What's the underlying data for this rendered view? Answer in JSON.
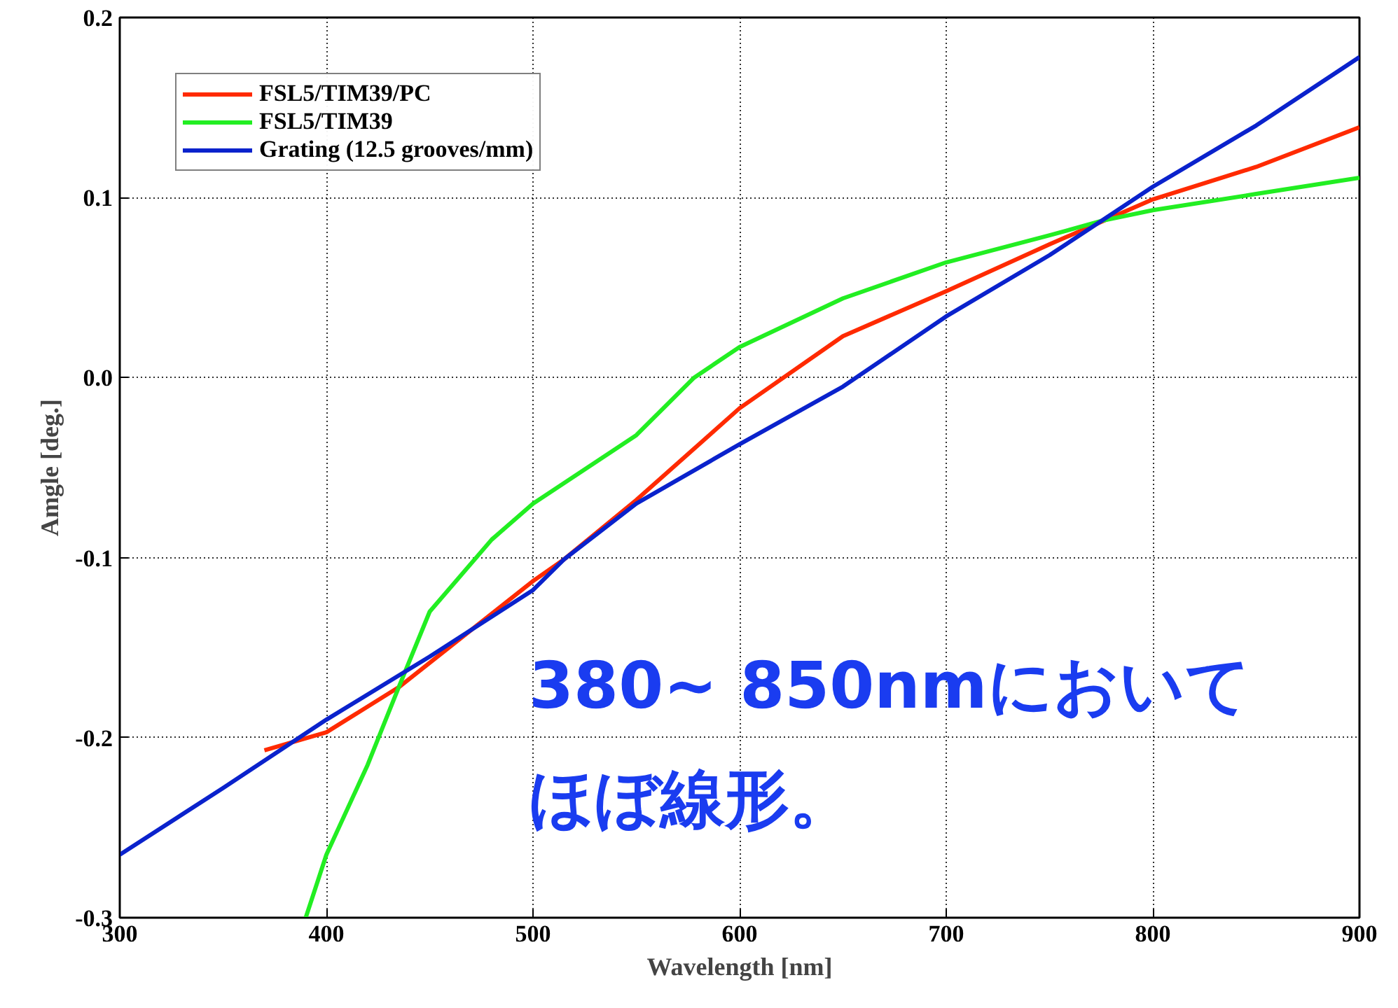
{
  "chart_data": {
    "type": "line",
    "xlabel": "Wavelength [nm]",
    "ylabel": "Amgle [deg.]",
    "xlim": [
      300,
      900
    ],
    "ylim": [
      -0.3,
      0.2
    ],
    "xticks": [
      300,
      400,
      500,
      600,
      700,
      800,
      900
    ],
    "yticks": [
      {
        "value": -0.3,
        "label": "-0.3"
      },
      {
        "value": -0.2,
        "label": "-0.2"
      },
      {
        "value": -0.1,
        "label": "-0.1"
      },
      {
        "value": 0,
        "label": "0.0"
      },
      {
        "value": 0.1,
        "label": "0.1"
      },
      {
        "value": 0.2,
        "label": "0.2"
      }
    ],
    "grid": true,
    "legend": "top left",
    "line_style": "solid",
    "series": [
      {
        "name": "FSL5/TIM39/PC",
        "color": "#ff2a00",
        "x": [
          370,
          400,
          435,
          500,
          515,
          550,
          600,
          650,
          700,
          750,
          800,
          850,
          900
        ],
        "values": [
          -0.207,
          -0.197,
          -0.172,
          -0.113,
          -0.101,
          -0.068,
          -0.017,
          0.023,
          0.048,
          0.074,
          0.099,
          0.117,
          0.139
        ]
      },
      {
        "name": "FSL5/TIM39",
        "color": "#22ee22",
        "x": [
          390,
          400,
          420,
          435,
          450,
          480,
          500,
          550,
          578,
          600,
          650,
          700,
          750,
          775,
          800,
          850,
          900
        ],
        "values": [
          -0.3,
          -0.265,
          -0.215,
          -0.172,
          -0.13,
          -0.09,
          -0.07,
          -0.032,
          0,
          0.017,
          0.044,
          0.064,
          0.079,
          0.087,
          0.093,
          0.102,
          0.111
        ]
      },
      {
        "name": "Grating (12.5 grooves/mm)",
        "color": "#0a22cc",
        "x": [
          300,
          350,
          400,
          450,
          500,
          515,
          550,
          600,
          650,
          700,
          750,
          775,
          800,
          850,
          900
        ],
        "values": [
          -0.265,
          -0.228,
          -0.19,
          -0.155,
          -0.118,
          -0.101,
          -0.07,
          -0.037,
          -0.005,
          0.034,
          0.068,
          0.087,
          0.106,
          0.14,
          0.178
        ]
      }
    ],
    "annotations": [
      "380~ 850nmにおいて",
      "ほぼ線形。"
    ]
  }
}
